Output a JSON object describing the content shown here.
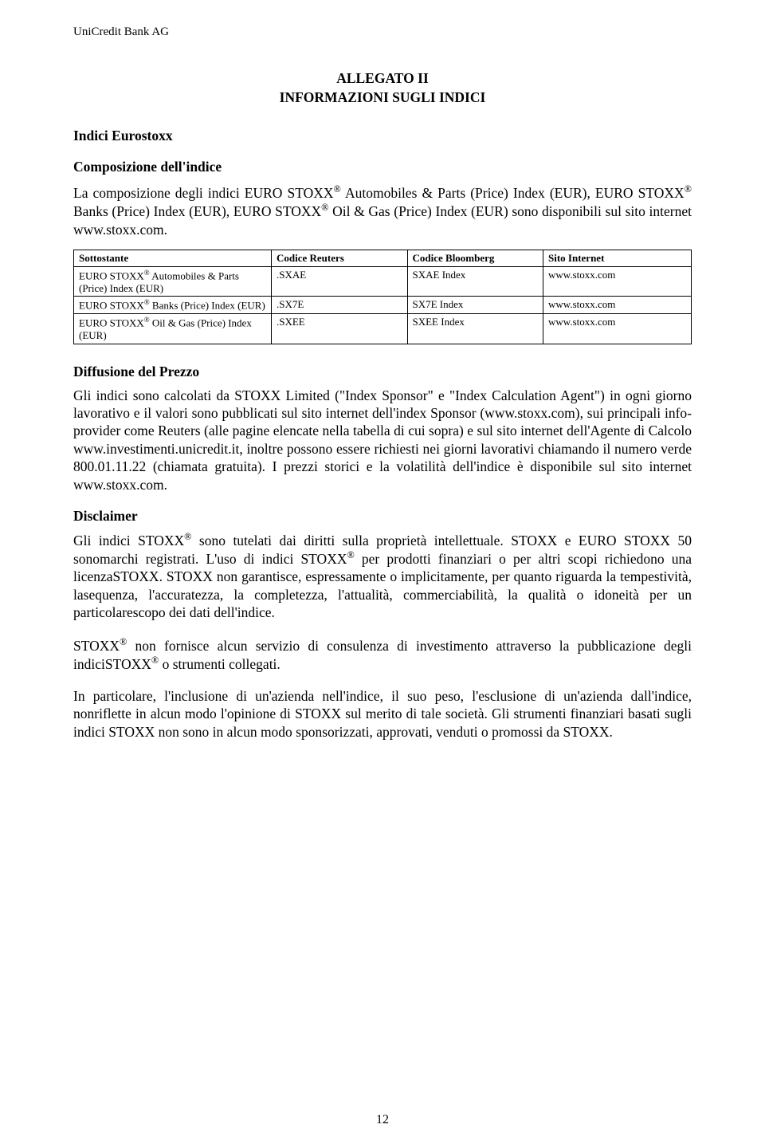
{
  "header": {
    "running": "UniCredit Bank AG"
  },
  "title": {
    "line1": "ALLEGATO II",
    "line2": "INFORMAZIONI SUGLI INDICI"
  },
  "section1": {
    "heading": "Indici Eurostoxx",
    "subheading": "Composizione dell'indice",
    "para": "La composizione degli indici EURO STOXX® Automobiles & Parts (Price) Index (EUR), EURO STOXX® Banks (Price) Index (EUR), EURO STOXX® Oil & Gas (Price) Index (EUR) sono disponibili sul sito internet www.stoxx.com."
  },
  "table": {
    "headers": [
      "Sottostante",
      "Codice Reuters",
      "Codice Bloomberg",
      "Sito Internet"
    ],
    "rows": [
      [
        "EURO STOXX® Automobiles & Parts (Price) Index (EUR)",
        ".SXAE",
        "SXAE Index",
        "www.stoxx.com"
      ],
      [
        "EURO STOXX® Banks (Price) Index (EUR)",
        ".SX7E",
        "SX7E Index",
        "www.stoxx.com"
      ],
      [
        "EURO STOXX® Oil & Gas (Price) Index (EUR)",
        ".SXEE",
        "SXEE Index",
        "www.stoxx.com"
      ]
    ]
  },
  "diffusione": {
    "heading": "Diffusione del Prezzo",
    "para": "Gli indici sono calcolati da STOXX Limited (\"Index Sponsor\" e \"Index Calculation Agent\") in ogni giorno lavorativo e il valori sono pubblicati sul sito internet dell'index Sponsor (www.stoxx.com), sui principali info-provider come Reuters (alle pagine elencate nella tabella di cui sopra) e sul sito internet dell'Agente di Calcolo www.investimenti.unicredit.it, inoltre possono essere richiesti nei giorni lavorativi chiamando il numero verde 800.01.11.22 (chiamata gratuita). I prezzi storici e la volatilità dell'indice è disponibile sul sito internet www.stoxx.com."
  },
  "disclaimer": {
    "heading": "Disclaimer",
    "p1": "Gli indici STOXX® sono tutelati dai diritti sulla proprietà intellettuale. STOXX e EURO STOXX 50 sonomarchi registrati. L'uso di indici STOXX® per prodotti finanziari o per altri scopi richiedono una licenzaSTOXX. STOXX non garantisce, espressamente o implicitamente, per quanto riguarda la tempestività, lasequenza, l'accuratezza, la completezza, l'attualità, commerciabilità, la qualità o idoneità per un particolarescopo dei dati dell'indice.",
    "p2": "STOXX® non fornisce alcun servizio di consulenza di investimento attraverso la pubblicazione degli indiciSTOXX® o strumenti collegati.",
    "p3": "In particolare, l'inclusione di un'azienda nell'indice, il suo peso, l'esclusione di un'azienda dall'indice, nonriflette in alcun modo l'opinione di STOXX sul merito di tale società. Gli strumenti finanziari basati sugli indici STOXX non sono in alcun modo sponsorizzati, approvati, venduti o promossi da STOXX."
  },
  "pageNumber": "12"
}
